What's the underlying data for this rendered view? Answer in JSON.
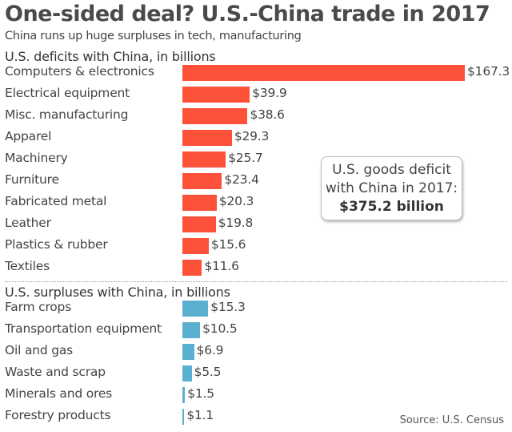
{
  "colors": {
    "deficit": "#fd5139",
    "surplus": "#5bb0d0"
  },
  "chart_data": {
    "type": "bar",
    "orientation": "horizontal",
    "title": "One-sided deal? U.S.-China trade in 2017",
    "subtitle": "China runs up huge surpluses in tech, manufacturing",
    "unit_prefix": "$",
    "series": [
      {
        "name": "U.S. deficits with China, in billions",
        "categories": [
          "Computers & electronics",
          "Electrical equipment",
          "Misc. manufacturing",
          "Apparel",
          "Machinery",
          "Furniture",
          "Fabricated metal",
          "Leather",
          "Plastics & rubber",
          "Textiles"
        ],
        "values": [
          167.3,
          39.9,
          38.6,
          29.3,
          25.7,
          23.4,
          20.3,
          19.8,
          15.6,
          11.6
        ],
        "labels": [
          "$167.3",
          "$39.9",
          "$38.6",
          "$29.3",
          "$25.7",
          "$23.4",
          "$20.3",
          "$19.8",
          "$15.6",
          "$11.6"
        ]
      },
      {
        "name": "U.S. surpluses with China, in billions",
        "categories": [
          "Farm crops",
          "Transportation equipment",
          "Oil and gas",
          "Waste and scrap",
          "Minerals and ores",
          "Forestry products"
        ],
        "values": [
          15.3,
          10.5,
          6.9,
          5.5,
          1.5,
          1.1
        ],
        "labels": [
          "$15.3",
          "$10.5",
          "$6.9",
          "$5.5",
          "$1.5",
          "$1.1"
        ]
      }
    ],
    "annotation": {
      "line1": "U.S. goods deficit",
      "line2": "with China in 2017:",
      "value": "$375.2 billion"
    },
    "source": "Source: U.S. Census"
  }
}
